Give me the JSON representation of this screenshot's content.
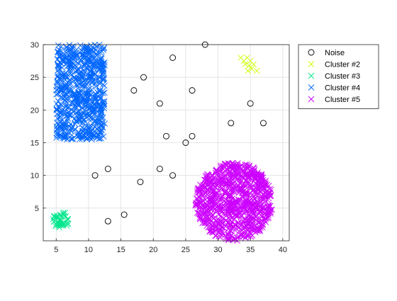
{
  "chart_data": {
    "type": "scatter",
    "title": "",
    "xlabel": "",
    "ylabel": "",
    "xlim": [
      3,
      41
    ],
    "ylim": [
      0,
      30
    ],
    "xticks": [
      5,
      10,
      15,
      20,
      25,
      30,
      35,
      40
    ],
    "yticks": [
      5,
      10,
      15,
      20,
      25,
      30
    ],
    "grid": true,
    "legend_position": "outside-top-right",
    "series": [
      {
        "name": "Noise",
        "marker": "o",
        "color": "#000000",
        "points": [
          [
            28,
            30
          ],
          [
            23,
            28
          ],
          [
            18.5,
            25
          ],
          [
            17,
            23
          ],
          [
            26,
            23
          ],
          [
            21,
            21
          ],
          [
            32,
            18
          ],
          [
            35,
            21
          ],
          [
            37,
            18
          ],
          [
            22,
            16
          ],
          [
            26,
            16
          ],
          [
            25,
            15
          ],
          [
            11,
            10
          ],
          [
            13,
            11
          ],
          [
            18,
            9
          ],
          [
            21,
            11
          ],
          [
            23,
            10
          ],
          [
            15.5,
            4
          ],
          [
            13,
            3
          ]
        ]
      },
      {
        "name": "Cluster #2",
        "marker": "x",
        "color": "#ccff00",
        "points": [
          [
            33.5,
            28
          ],
          [
            34,
            27.5
          ],
          [
            34.5,
            28
          ],
          [
            34.2,
            27
          ],
          [
            34.8,
            26.8
          ],
          [
            35,
            27.5
          ],
          [
            35.5,
            27
          ],
          [
            34.6,
            26
          ],
          [
            35.2,
            26.3
          ],
          [
            36,
            26
          ]
        ]
      },
      {
        "name": "Cluster #3",
        "marker": "x",
        "color": "#00e68c",
        "region": {
          "shape": "ellipse",
          "cx": 5.8,
          "cy": 3.2,
          "rx": 1.3,
          "ry": 1.3
        },
        "point_count": 45
      },
      {
        "name": "Cluster #4",
        "marker": "x",
        "color": "#0066ff",
        "region": {
          "shape": "rect",
          "x": [
            5,
            12.5
          ],
          "y": [
            15.5,
            30
          ]
        },
        "point_count": 700
      },
      {
        "name": "Cluster #5",
        "marker": "x",
        "color": "#cc00ff",
        "region": {
          "shape": "ellipse",
          "cx": 32.5,
          "cy": 6,
          "rx": 6,
          "ry": 6
        },
        "point_count": 900
      }
    ]
  }
}
